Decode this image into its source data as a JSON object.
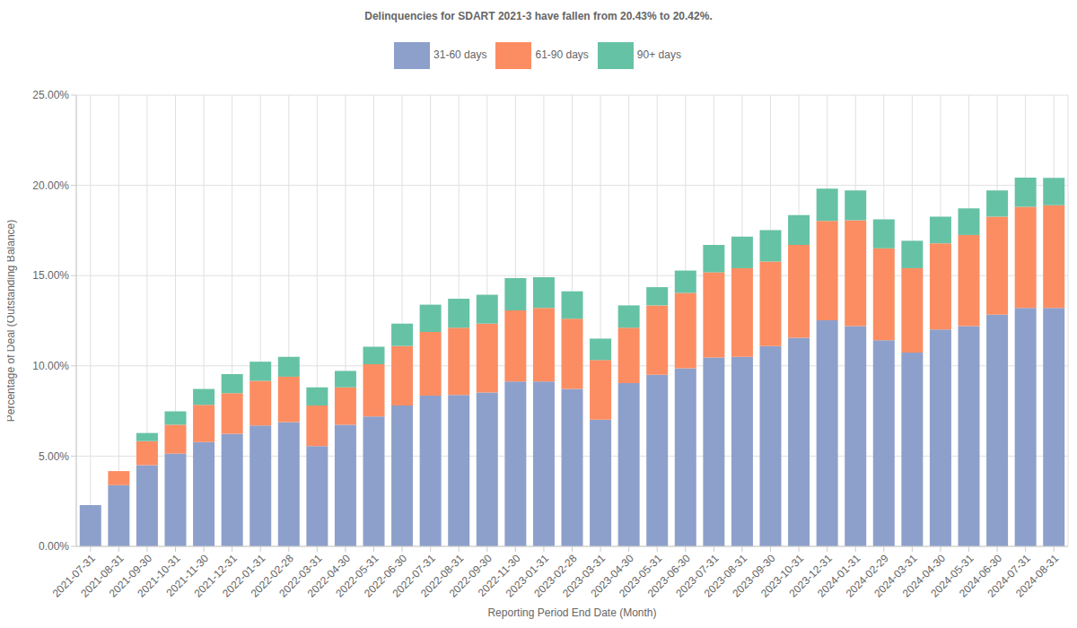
{
  "chart_data": {
    "type": "bar",
    "title": "Delinquencies for SDART 2021-3 have fallen from 20.43% to 20.42%.",
    "x_label": "Reporting Period End Date (Month)",
    "y_label": "Percentage of Deal (Outstanding Balance)",
    "categories": [
      "2021-07-31",
      "2021-08-31",
      "2021-09-30",
      "2021-10-31",
      "2021-11-30",
      "2021-12-31",
      "2022-01-31",
      "2022-02-28",
      "2022-03-31",
      "2022-04-30",
      "2022-05-31",
      "2022-06-30",
      "2022-07-31",
      "2022-08-31",
      "2022-09-30",
      "2022-11-30",
      "2023-01-31",
      "2023-02-28",
      "2023-03-31",
      "2023-04-30",
      "2023-05-31",
      "2023-06-30",
      "2023-07-31",
      "2023-08-31",
      "2023-09-30",
      "2023-10-31",
      "2023-12-31",
      "2024-01-31",
      "2024-02-29",
      "2024-03-31",
      "2024-04-30",
      "2024-05-31",
      "2024-06-30",
      "2024-07-31",
      "2024-08-31"
    ],
    "series": [
      {
        "name": "31-60 days",
        "color": "#8da0cb",
        "values": [
          2.29,
          3.39,
          4.5,
          5.14,
          5.78,
          6.24,
          6.7,
          6.88,
          5.55,
          6.74,
          7.2,
          7.8,
          8.35,
          8.39,
          8.53,
          9.13,
          9.13,
          8.72,
          7.02,
          9.04,
          9.5,
          9.86,
          10.46,
          10.5,
          11.1,
          11.56,
          12.52,
          12.2,
          11.42,
          10.73,
          12.02,
          12.2,
          12.84,
          13.21,
          13.21
        ]
      },
      {
        "name": "61-90 days",
        "color": "#fc8d62",
        "values": [
          0,
          0.78,
          1.33,
          1.6,
          2.06,
          2.25,
          2.47,
          2.52,
          2.25,
          2.07,
          2.89,
          3.3,
          3.53,
          3.72,
          3.81,
          3.94,
          4.08,
          3.89,
          3.3,
          3.07,
          3.85,
          4.18,
          4.72,
          4.91,
          4.68,
          5.14,
          5.51,
          5.87,
          5.09,
          4.68,
          4.77,
          5.05,
          5.42,
          5.6,
          5.69
        ]
      },
      {
        "name": "90+ days",
        "color": "#66c2a5",
        "values": [
          0,
          0,
          0.45,
          0.74,
          0.88,
          1.05,
          1.06,
          1.1,
          1.01,
          0.91,
          0.97,
          1.24,
          1.51,
          1.61,
          1.6,
          1.79,
          1.7,
          1.52,
          1.19,
          1.24,
          1.01,
          1.24,
          1.52,
          1.75,
          1.74,
          1.65,
          1.79,
          1.65,
          1.61,
          1.52,
          1.47,
          1.47,
          1.46,
          1.62,
          1.52
        ]
      }
    ],
    "ylim": [
      0,
      25
    ],
    "yticks": [
      {
        "value": 0,
        "label": "0.00%"
      },
      {
        "value": 5,
        "label": "5.00%"
      },
      {
        "value": 10,
        "label": "10.00%"
      },
      {
        "value": 15,
        "label": "15.00%"
      },
      {
        "value": 20,
        "label": "20.00%"
      },
      {
        "value": 25,
        "label": "25.00%"
      }
    ],
    "grid": true,
    "stacked": true,
    "legend": "top"
  }
}
